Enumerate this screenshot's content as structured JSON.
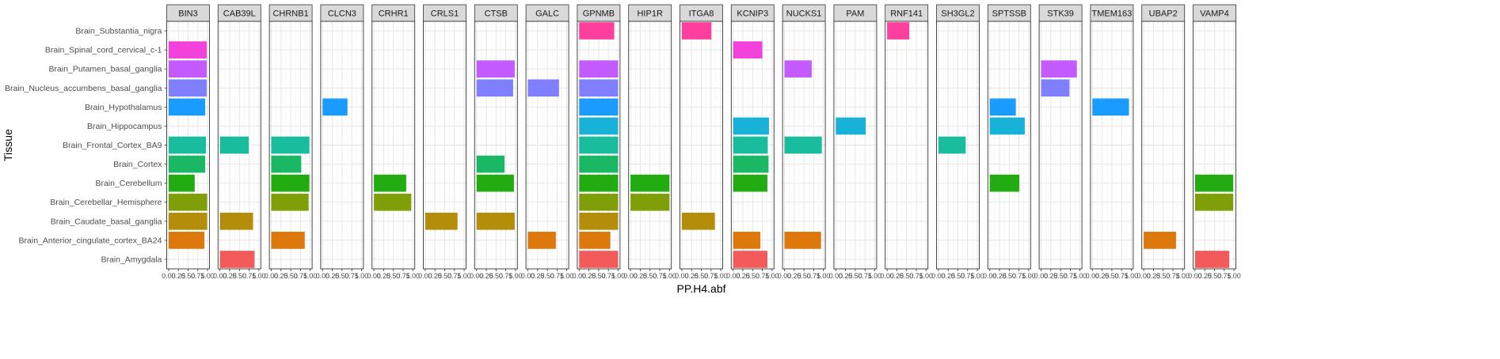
{
  "chart_data": {
    "type": "bar",
    "orientation": "horizontal",
    "faceted": true,
    "xlabel": "PP.H4.abf",
    "ylabel": "Tissue",
    "xlim": [
      0,
      1
    ],
    "x_ticks": [
      "0.00",
      "0.25",
      "0.50",
      "0.75",
      "1.00"
    ],
    "grid": true,
    "legend": "none",
    "categories": [
      "Brain_Substantia_nigra",
      "Brain_Spinal_cord_cervical_c-1",
      "Brain_Putamen_basal_ganglia",
      "Brain_Nucleus_accumbens_basal_ganglia",
      "Brain_Hypothalamus",
      "Brain_Hippocampus",
      "Brain_Frontal_Cortex_BA9",
      "Brain_Cortex",
      "Brain_Cerebellum",
      "Brain_Cerebellar_Hemisphere",
      "Brain_Caudate_basal_ganglia",
      "Brain_Anterior_cingulate_cortex_BA24",
      "Brain_Amygdala"
    ],
    "category_colors": {
      "Brain_Substantia_nigra": "#FF3F9E",
      "Brain_Spinal_cord_cervical_c-1": "#F242DB",
      "Brain_Putamen_basal_ganglia": "#C35BFF",
      "Brain_Nucleus_accumbens_basal_ganglia": "#7F7FFF",
      "Brain_Hypothalamus": "#1A9BFF",
      "Brain_Hippocampus": "#18B1D8",
      "Brain_Frontal_Cortex_BA9": "#19BC9C",
      "Brain_Cortex": "#1AB764",
      "Brain_Cerebellum": "#23AC11",
      "Brain_Cerebellar_Hemisphere": "#7F9E07",
      "Brain_Caudate_basal_ganglia": "#B48E0A",
      "Brain_Anterior_cingulate_cortex_BA24": "#DC780C",
      "Brain_Amygdala": "#F35B5B"
    },
    "facets": [
      {
        "gene": "BIN3",
        "values": {
          "Brain_Spinal_cord_cervical_c-1": 0.98,
          "Brain_Putamen_basal_ganglia": 0.98,
          "Brain_Nucleus_accumbens_basal_ganglia": 0.98,
          "Brain_Hypothalamus": 0.94,
          "Brain_Frontal_Cortex_BA9": 0.96,
          "Brain_Cortex": 0.94,
          "Brain_Cerebellum": 0.67,
          "Brain_Cerebellar_Hemisphere": 0.99,
          "Brain_Caudate_basal_ganglia": 0.99,
          "Brain_Anterior_cingulate_cortex_BA24": 0.92
        }
      },
      {
        "gene": "CAB39L",
        "values": {
          "Brain_Frontal_Cortex_BA9": 0.74,
          "Brain_Caudate_basal_ganglia": 0.85,
          "Brain_Amygdala": 0.89
        }
      },
      {
        "gene": "CHRNB1",
        "values": {
          "Brain_Frontal_Cortex_BA9": 0.98,
          "Brain_Cortex": 0.77,
          "Brain_Cerebellum": 0.98,
          "Brain_Cerebellar_Hemisphere": 0.96,
          "Brain_Anterior_cingulate_cortex_BA24": 0.86
        }
      },
      {
        "gene": "CLCN3",
        "values": {
          "Brain_Hypothalamus": 0.64
        }
      },
      {
        "gene": "CRHR1",
        "values": {
          "Brain_Cerebellum": 0.83,
          "Brain_Cerebellar_Hemisphere": 0.96
        }
      },
      {
        "gene": "CRLS1",
        "values": {
          "Brain_Caudate_basal_ganglia": 0.83
        }
      },
      {
        "gene": "CTSB",
        "values": {
          "Brain_Putamen_basal_ganglia": 0.98,
          "Brain_Nucleus_accumbens_basal_ganglia": 0.94,
          "Brain_Cortex": 0.72,
          "Brain_Cerebellum": 0.96,
          "Brain_Caudate_basal_ganglia": 0.98
        }
      },
      {
        "gene": "GALC",
        "values": {
          "Brain_Nucleus_accumbens_basal_ganglia": 0.8,
          "Brain_Anterior_cingulate_cortex_BA24": 0.72
        }
      },
      {
        "gene": "GPNMB",
        "values": {
          "Brain_Substantia_nigra": 0.9,
          "Brain_Spinal_cord_cervical_c-1": 0.0,
          "Brain_Putamen_basal_ganglia": 1.0,
          "Brain_Nucleus_accumbens_basal_ganglia": 1.0,
          "Brain_Hypothalamus": 1.0,
          "Brain_Hippocampus": 1.0,
          "Brain_Frontal_Cortex_BA9": 1.0,
          "Brain_Cortex": 1.0,
          "Brain_Cerebellum": 1.0,
          "Brain_Cerebellar_Hemisphere": 1.0,
          "Brain_Caudate_basal_ganglia": 1.0,
          "Brain_Anterior_cingulate_cortex_BA24": 0.8,
          "Brain_Amygdala": 1.0
        }
      },
      {
        "gene": "HIP1R",
        "values": {
          "Brain_Cerebellum": 1.0,
          "Brain_Cerebellar_Hemisphere": 1.0
        }
      },
      {
        "gene": "ITGA8",
        "values": {
          "Brain_Substantia_nigra": 0.76,
          "Brain_Caudate_basal_ganglia": 0.85
        }
      },
      {
        "gene": "KCNIP3",
        "values": {
          "Brain_Spinal_cord_cervical_c-1": 0.75,
          "Brain_Hippocampus": 0.92,
          "Brain_Frontal_Cortex_BA9": 0.89,
          "Brain_Cortex": 0.91,
          "Brain_Cerebellum": 0.88,
          "Brain_Anterior_cingulate_cortex_BA24": 0.7,
          "Brain_Amygdala": 0.88
        }
      },
      {
        "gene": "NUCKS1",
        "values": {
          "Brain_Putamen_basal_ganglia": 0.7,
          "Brain_Frontal_Cortex_BA9": 0.96,
          "Brain_Anterior_cingulate_cortex_BA24": 0.94
        }
      },
      {
        "gene": "PAM",
        "values": {
          "Brain_Hippocampus": 0.77
        }
      },
      {
        "gene": "RNF141",
        "values": {
          "Brain_Substantia_nigra": 0.57
        }
      },
      {
        "gene": "SH3GL2",
        "values": {
          "Brain_Frontal_Cortex_BA9": 0.7
        }
      },
      {
        "gene": "SPTSSB",
        "values": {
          "Brain_Hypothalamus": 0.67,
          "Brain_Hippocampus": 0.9,
          "Brain_Cerebellum": 0.76
        }
      },
      {
        "gene": "STK39",
        "values": {
          "Brain_Putamen_basal_ganglia": 0.92,
          "Brain_Nucleus_accumbens_basal_ganglia": 0.73
        }
      },
      {
        "gene": "TMEM163",
        "values": {
          "Brain_Hypothalamus": 0.94
        }
      },
      {
        "gene": "UBAP2",
        "values": {
          "Brain_Anterior_cingulate_cortex_BA24": 0.83
        }
      },
      {
        "gene": "VAMP4",
        "values": {
          "Brain_Cerebellum": 0.98,
          "Brain_Cerebellar_Hemisphere": 0.98,
          "Brain_Amygdala": 0.88
        }
      }
    ]
  }
}
